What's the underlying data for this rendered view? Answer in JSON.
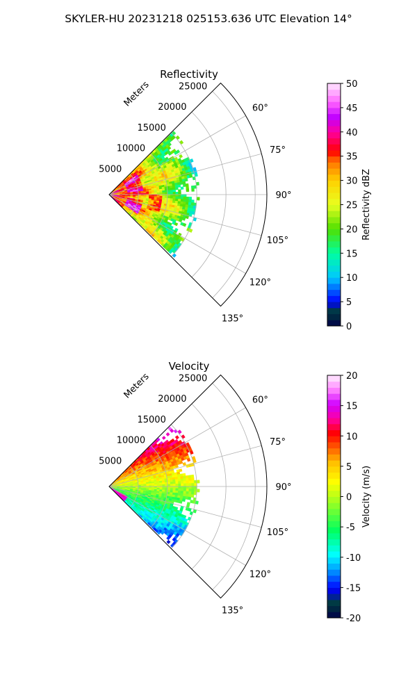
{
  "suptitle": "SKYLER-HU  20231218  025153.636 UTC Elevation 14°",
  "chart_data": [
    {
      "type": "heatmap",
      "projection": "polar-sector",
      "title": "Reflectivity",
      "range_label": "Meters",
      "range_ticks": [
        5000,
        10000,
        15000,
        20000,
        25000
      ],
      "range_lim": [
        0,
        27000
      ],
      "azimuth_lim_deg": [
        45,
        135
      ],
      "azimuth_ticks": [
        "60°",
        "75°",
        "90°",
        "105°",
        "120°",
        "135°"
      ],
      "grid": true,
      "field_extent_m": 15500,
      "colorbar": {
        "label": "Reflectivity dBZ",
        "range": [
          0,
          50
        ],
        "ticks": [
          "0",
          "5",
          "10",
          "15",
          "20",
          "25",
          "30",
          "35",
          "40",
          "45",
          "50"
        ],
        "colormap": "NWSRef-like"
      }
    },
    {
      "type": "heatmap",
      "projection": "polar-sector",
      "title": "Velocity",
      "range_label": "Meters",
      "range_ticks": [
        5000,
        10000,
        15000,
        20000,
        25000
      ],
      "range_lim": [
        0,
        27000
      ],
      "azimuth_lim_deg": [
        45,
        135
      ],
      "azimuth_ticks": [
        "60°",
        "75°",
        "90°",
        "105°",
        "120°",
        "135°"
      ],
      "grid": true,
      "field_extent_m": 15500,
      "colorbar": {
        "label": "Velocity (m/s)",
        "range": [
          -20,
          20
        ],
        "ticks": [
          "-20",
          "-15",
          "-10",
          "-5",
          "0",
          "5",
          "10",
          "15",
          "20"
        ],
        "colormap": "NWSVel-like"
      }
    }
  ]
}
